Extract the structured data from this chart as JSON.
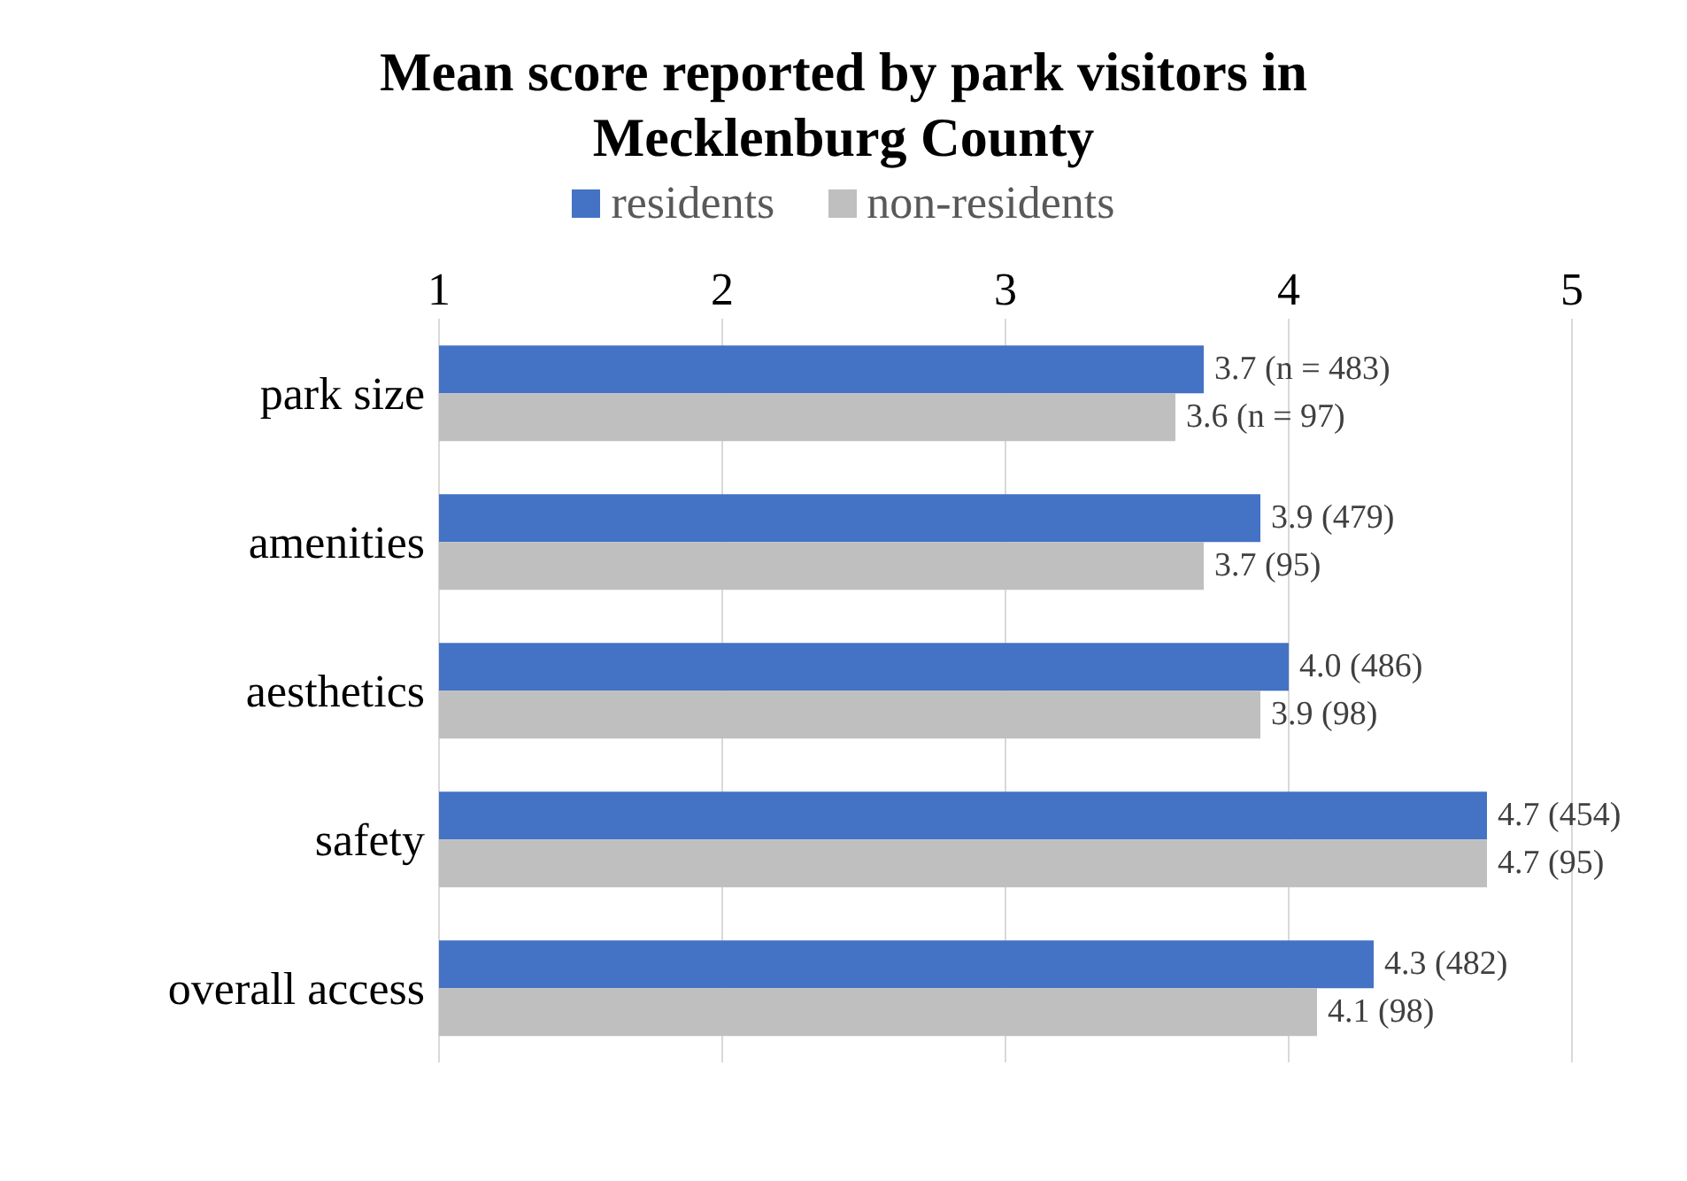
{
  "chart_data": {
    "type": "bar",
    "orientation": "horizontal",
    "title": "Mean score reported by park visitors in Mecklenburg County",
    "categories": [
      "park size",
      "amenities",
      "aesthetics",
      "safety",
      "overall access"
    ],
    "series": [
      {
        "name": "residents",
        "color": "#4472c4",
        "values": [
          3.7,
          3.9,
          4.0,
          4.7,
          4.3
        ],
        "value_labels": [
          "3.7 (n = 483)",
          "3.9 (479)",
          "4.0 (486)",
          "4.7 (454)",
          "4.3 (482)"
        ]
      },
      {
        "name": "non-residents",
        "color": "#bfbfbf",
        "values": [
          3.6,
          3.7,
          3.9,
          4.7,
          4.1
        ],
        "value_labels": [
          "3.6 (n = 97)",
          "3.7 (95)",
          "3.9 (98)",
          "4.7 (95)",
          "4.1 (98)"
        ]
      }
    ],
    "xlim": [
      1,
      5
    ],
    "xticks": [
      1,
      2,
      3,
      4,
      5
    ],
    "grid": "x",
    "legend": "top"
  }
}
